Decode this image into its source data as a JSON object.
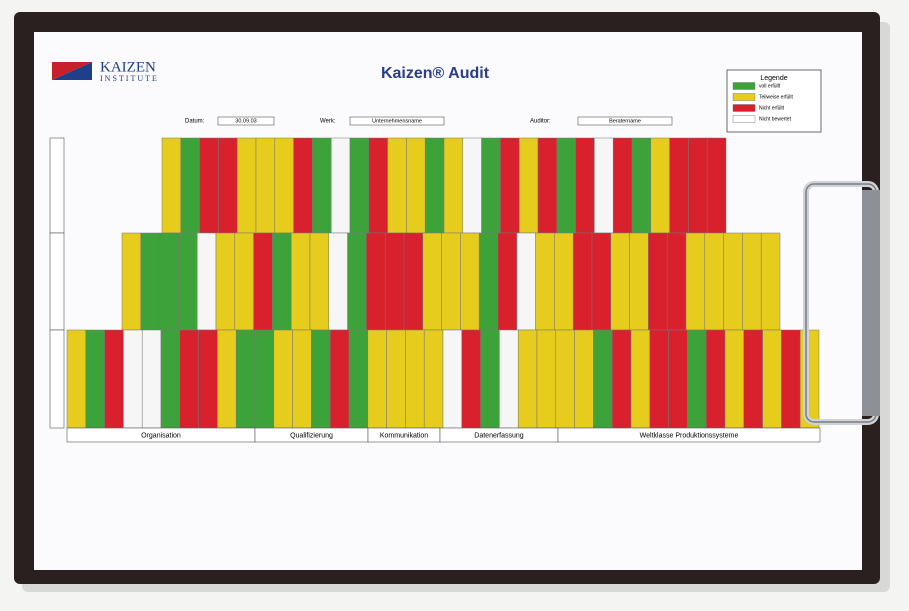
{
  "logo": {
    "name": "KAIZEN",
    "subtitle": "INSTITUTE"
  },
  "header": {
    "title": "Kaizen® Audit",
    "fields": [
      {
        "label": "Datum:",
        "value": "30.09.03"
      },
      {
        "label": "Werk:",
        "value": "Unternehmensname"
      },
      {
        "label": "Auditor:",
        "value": "Beratername"
      }
    ]
  },
  "legend": {
    "title": "Legende",
    "items": [
      "voll erfüllt",
      "Teilweise erfüllt",
      "Nicht erfüllt",
      "Nicht bewertet"
    ]
  },
  "categories": [
    "Organisation",
    "Qualifizierung",
    "Kommunikation",
    "Datenerfassung",
    "Weltklasse Produktionssysteme"
  ]
}
